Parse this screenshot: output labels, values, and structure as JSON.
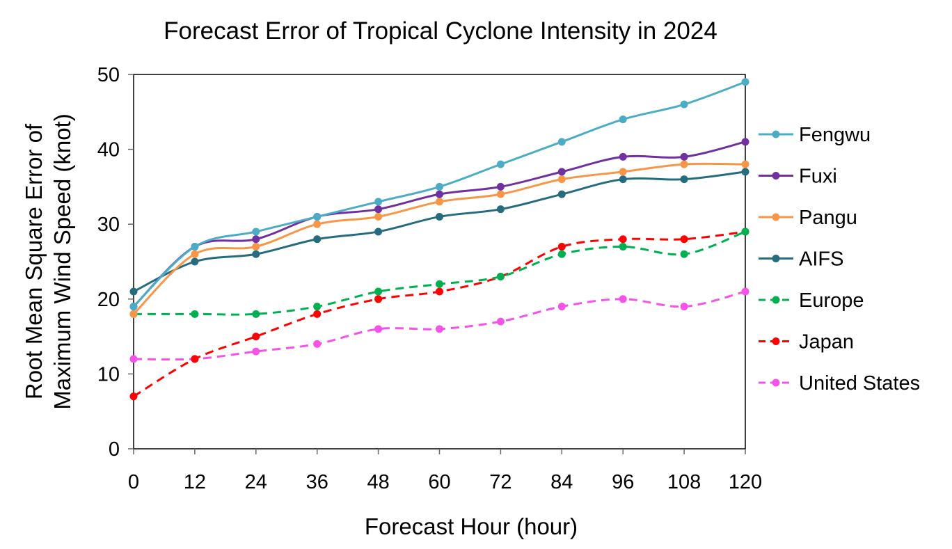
{
  "chart_data": {
    "type": "line",
    "title": "Forecast Error of Tropical Cyclone Intensity in 2024",
    "xlabel": "Forecast Hour (hour)",
    "ylabel": [
      "Root Mean Square Error of",
      "Maximum Wind Speed (knot)"
    ],
    "x": [
      0,
      12,
      24,
      36,
      48,
      60,
      72,
      84,
      96,
      108,
      120
    ],
    "xlim": [
      0,
      120
    ],
    "ylim": [
      0,
      50
    ],
    "yticks": [
      0,
      10,
      20,
      30,
      40,
      50
    ],
    "grid": false,
    "legend": "right",
    "smooth": true,
    "series": [
      {
        "name": "Fengwu",
        "color": "#4bacc6",
        "dash": false,
        "values": [
          19,
          27,
          29,
          31,
          33,
          35,
          38,
          41,
          44,
          46,
          49
        ]
      },
      {
        "name": "Fuxi",
        "color": "#7030a0",
        "dash": false,
        "values": [
          19,
          27,
          28,
          31,
          32,
          34,
          35,
          37,
          39,
          39,
          41
        ]
      },
      {
        "name": "Pangu",
        "color": "#f79646",
        "dash": false,
        "values": [
          18,
          26,
          27,
          30,
          31,
          33,
          34,
          36,
          37,
          38,
          38
        ]
      },
      {
        "name": "AIFS",
        "color": "#246c7e",
        "dash": false,
        "values": [
          21,
          25,
          26,
          28,
          29,
          31,
          32,
          34,
          36,
          36,
          37
        ]
      },
      {
        "name": "Europe",
        "color": "#00b050",
        "dash": true,
        "values": [
          18,
          18,
          18,
          19,
          21,
          22,
          23,
          26,
          27,
          26,
          29
        ]
      },
      {
        "name": "Japan",
        "color": "#ff0000",
        "dash": true,
        "values": [
          7,
          12,
          15,
          18,
          20,
          21,
          23,
          27,
          28,
          28,
          29
        ]
      },
      {
        "name": "United States",
        "color": "#f553e8",
        "dash": true,
        "values": [
          12,
          12,
          13,
          14,
          16,
          16,
          17,
          19,
          20,
          19,
          21
        ]
      }
    ]
  }
}
